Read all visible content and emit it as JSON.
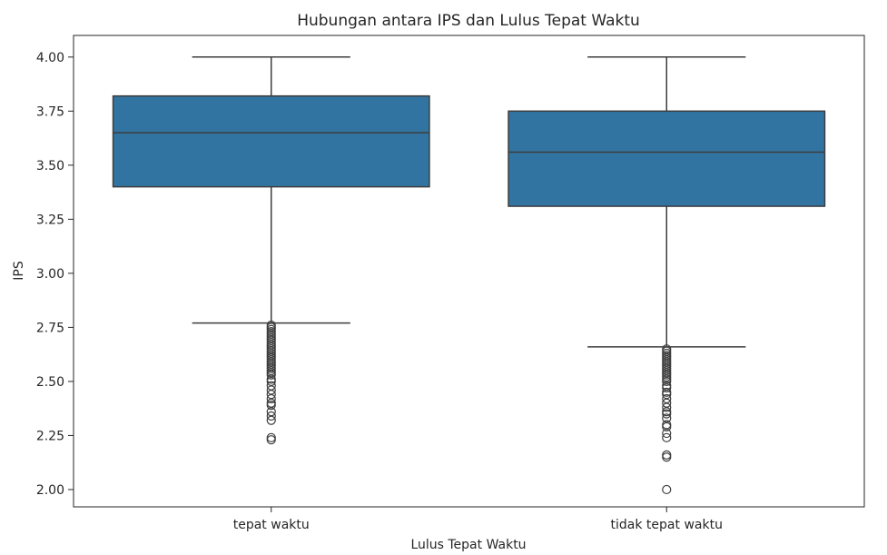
{
  "chart_data": {
    "type": "boxplot",
    "title": "Hubungan antara IPS dan Lulus Tepat Waktu",
    "xlabel": "Lulus Tepat Waktu",
    "ylabel": "IPS",
    "ylim": [
      1.92,
      4.1
    ],
    "yticks": [
      "2.00",
      "2.25",
      "2.50",
      "2.75",
      "3.00",
      "3.25",
      "3.50",
      "3.75",
      "4.00"
    ],
    "categories": [
      "tepat waktu",
      "tidak tepat waktu"
    ],
    "box_color": "#3274a1",
    "boxes": [
      {
        "category": "tepat waktu",
        "whisker_low": 2.77,
        "q1": 3.4,
        "median": 3.65,
        "q3": 3.82,
        "whisker_high": 4.0,
        "outliers": [
          2.76,
          2.75,
          2.74,
          2.73,
          2.72,
          2.71,
          2.7,
          2.69,
          2.68,
          2.67,
          2.66,
          2.65,
          2.64,
          2.63,
          2.62,
          2.61,
          2.6,
          2.59,
          2.58,
          2.57,
          2.56,
          2.55,
          2.54,
          2.53,
          2.51,
          2.5,
          2.48,
          2.46,
          2.44,
          2.42,
          2.4,
          2.39,
          2.36,
          2.34,
          2.32,
          2.24,
          2.23
        ]
      },
      {
        "category": "tidak tepat waktu",
        "whisker_low": 2.66,
        "q1": 3.31,
        "median": 3.56,
        "q3": 3.75,
        "whisker_high": 4.0,
        "outliers": [
          2.65,
          2.64,
          2.63,
          2.62,
          2.61,
          2.6,
          2.59,
          2.58,
          2.57,
          2.56,
          2.55,
          2.54,
          2.53,
          2.52,
          2.51,
          2.5,
          2.48,
          2.47,
          2.45,
          2.44,
          2.42,
          2.4,
          2.38,
          2.36,
          2.35,
          2.33,
          2.3,
          2.29,
          2.26,
          2.24,
          2.16,
          2.15,
          2.0
        ]
      }
    ]
  }
}
